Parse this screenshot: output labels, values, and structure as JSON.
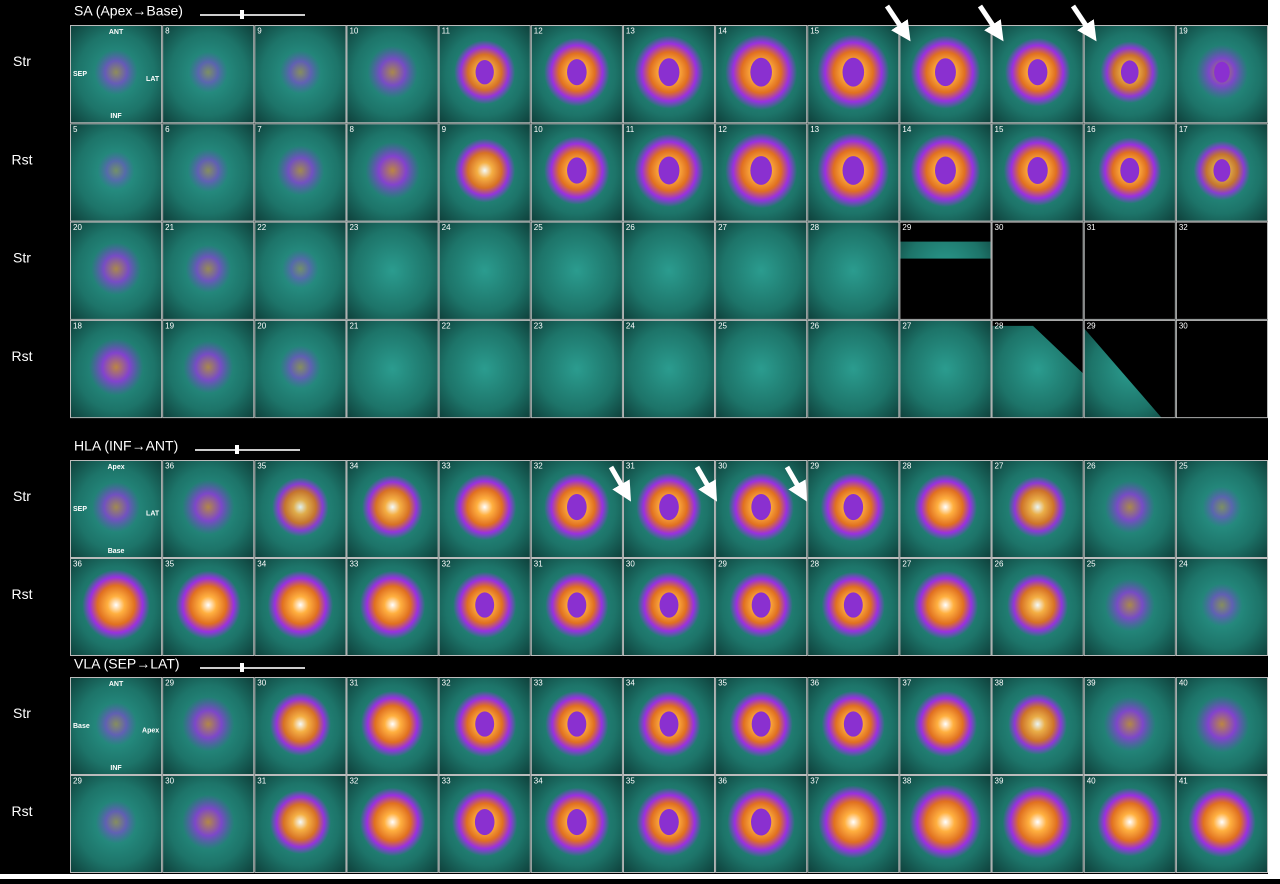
{
  "sections": [
    {
      "title": "SA (Apex→Base)",
      "orientation": {
        "top": "ANT",
        "left": "SEP",
        "right": "LAT",
        "bottom": "INF"
      },
      "rows": [
        {
          "label": "Str",
          "frames": [
            null,
            8,
            9,
            10,
            11,
            12,
            13,
            14,
            15,
            null,
            null,
            null,
            19
          ]
        },
        {
          "label": "Rst",
          "frames": [
            5,
            6,
            7,
            8,
            9,
            10,
            11,
            12,
            13,
            14,
            15,
            16,
            17
          ]
        },
        {
          "label": "Str",
          "frames": [
            20,
            21,
            22,
            23,
            24,
            25,
            26,
            27,
            28,
            29,
            30,
            31,
            32
          ]
        },
        {
          "label": "Rst",
          "frames": [
            18,
            19,
            20,
            21,
            22,
            23,
            24,
            25,
            26,
            27,
            28,
            29,
            30
          ]
        }
      ]
    },
    {
      "title": "HLA (INF→ANT)",
      "orientation": {
        "top": "Apex",
        "left": "SEP",
        "right": "LAT",
        "bottom": "Base"
      },
      "rows": [
        {
          "label": "Str",
          "frames": [
            null,
            36,
            35,
            34,
            33,
            32,
            31,
            30,
            29,
            28,
            27,
            26,
            25
          ]
        },
        {
          "label": "Rst",
          "frames": [
            36,
            35,
            34,
            33,
            32,
            31,
            30,
            29,
            28,
            27,
            26,
            25,
            24
          ]
        }
      ]
    },
    {
      "title": "VLA (SEP→LAT)",
      "orientation": {
        "top": "ANT",
        "left": "Base",
        "right": "Apex",
        "bottom": "INF"
      },
      "rows": [
        {
          "label": "Str",
          "frames": [
            null,
            29,
            30,
            31,
            32,
            33,
            34,
            35,
            36,
            37,
            38,
            39,
            40
          ]
        },
        {
          "label": "Rst",
          "frames": [
            29,
            30,
            31,
            32,
            33,
            34,
            35,
            36,
            37,
            38,
            39,
            40,
            41
          ]
        }
      ]
    }
  ]
}
